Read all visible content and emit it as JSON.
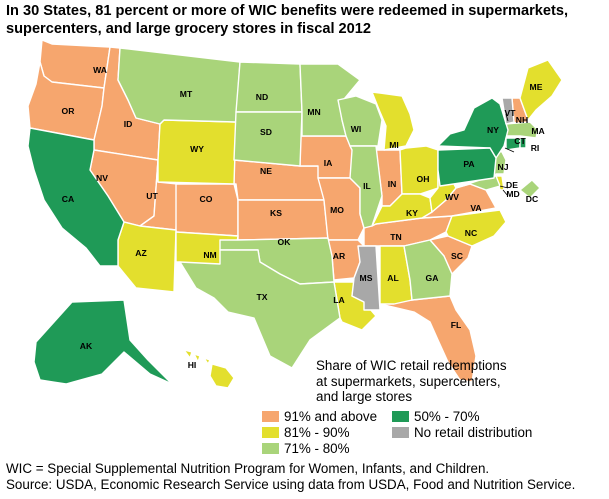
{
  "title": "In 30 States, 81 percent or more of WIC benefits were redeemed in supermarkets, supercenters, and large grocery stores in fiscal 2012",
  "colors": {
    "cat_91_above": "#f6a66e",
    "cat_81_90": "#e3df2d",
    "cat_71_80": "#a9d47a",
    "cat_50_70": "#1f9a57",
    "cat_none": "#a8a8a8"
  },
  "legend": {
    "title": "Share of WIC retail redemptions at supermarkets, supercenters, and large stores",
    "items": [
      {
        "key": "cat_91_above",
        "label": "91% and above"
      },
      {
        "key": "cat_81_90",
        "label": "81% - 90%"
      },
      {
        "key": "cat_71_80",
        "label": "71% - 80%"
      },
      {
        "key": "cat_50_70",
        "label": "50% - 70%"
      },
      {
        "key": "cat_none",
        "label": "No retail distribution"
      }
    ]
  },
  "states": [
    {
      "abbr": "WA",
      "category": "cat_91_above"
    },
    {
      "abbr": "OR",
      "category": "cat_91_above"
    },
    {
      "abbr": "ID",
      "category": "cat_91_above"
    },
    {
      "abbr": "NV",
      "category": "cat_91_above"
    },
    {
      "abbr": "UT",
      "category": "cat_91_above"
    },
    {
      "abbr": "CO",
      "category": "cat_91_above"
    },
    {
      "abbr": "NE",
      "category": "cat_91_above"
    },
    {
      "abbr": "KS",
      "category": "cat_91_above"
    },
    {
      "abbr": "IA",
      "category": "cat_91_above"
    },
    {
      "abbr": "MO",
      "category": "cat_91_above"
    },
    {
      "abbr": "AR",
      "category": "cat_91_above"
    },
    {
      "abbr": "IN",
      "category": "cat_91_above"
    },
    {
      "abbr": "TN",
      "category": "cat_91_above"
    },
    {
      "abbr": "SC",
      "category": "cat_91_above"
    },
    {
      "abbr": "FL",
      "category": "cat_91_above"
    },
    {
      "abbr": "VA",
      "category": "cat_91_above"
    },
    {
      "abbr": "NH",
      "category": "cat_91_above"
    },
    {
      "abbr": "HI",
      "category": "cat_81_90"
    },
    {
      "abbr": "WY",
      "category": "cat_81_90"
    },
    {
      "abbr": "AZ",
      "category": "cat_81_90"
    },
    {
      "abbr": "NM",
      "category": "cat_81_90"
    },
    {
      "abbr": "LA",
      "category": "cat_81_90"
    },
    {
      "abbr": "AL",
      "category": "cat_81_90"
    },
    {
      "abbr": "MI",
      "category": "cat_81_90"
    },
    {
      "abbr": "OH",
      "category": "cat_81_90"
    },
    {
      "abbr": "KY",
      "category": "cat_81_90"
    },
    {
      "abbr": "WV",
      "category": "cat_81_90"
    },
    {
      "abbr": "NC",
      "category": "cat_81_90"
    },
    {
      "abbr": "ME",
      "category": "cat_81_90"
    },
    {
      "abbr": "DE",
      "category": "cat_81_90"
    },
    {
      "abbr": "MT",
      "category": "cat_71_80"
    },
    {
      "abbr": "ND",
      "category": "cat_71_80"
    },
    {
      "abbr": "SD",
      "category": "cat_71_80"
    },
    {
      "abbr": "MN",
      "category": "cat_71_80"
    },
    {
      "abbr": "WI",
      "category": "cat_71_80"
    },
    {
      "abbr": "IL",
      "category": "cat_71_80"
    },
    {
      "abbr": "OK",
      "category": "cat_71_80"
    },
    {
      "abbr": "TX",
      "category": "cat_71_80"
    },
    {
      "abbr": "GA",
      "category": "cat_71_80"
    },
    {
      "abbr": "NJ",
      "category": "cat_71_80"
    },
    {
      "abbr": "MA",
      "category": "cat_71_80"
    },
    {
      "abbr": "MD",
      "category": "cat_71_80"
    },
    {
      "abbr": "DC",
      "category": "cat_71_80"
    },
    {
      "abbr": "CA",
      "category": "cat_50_70"
    },
    {
      "abbr": "AK",
      "category": "cat_50_70"
    },
    {
      "abbr": "NY",
      "category": "cat_50_70"
    },
    {
      "abbr": "PA",
      "category": "cat_50_70"
    },
    {
      "abbr": "CT",
      "category": "cat_50_70"
    },
    {
      "abbr": "RI",
      "category": "cat_50_70"
    },
    {
      "abbr": "MS",
      "category": "cat_none"
    },
    {
      "abbr": "VT",
      "category": "cat_none"
    }
  ],
  "footnote": {
    "line1": "WIC = Special Supplemental Nutrition Program for Women, Infants, and Children.",
    "line2": "Source: USDA, Economic Research Service using data from USDA, Food and Nutrition Service."
  }
}
